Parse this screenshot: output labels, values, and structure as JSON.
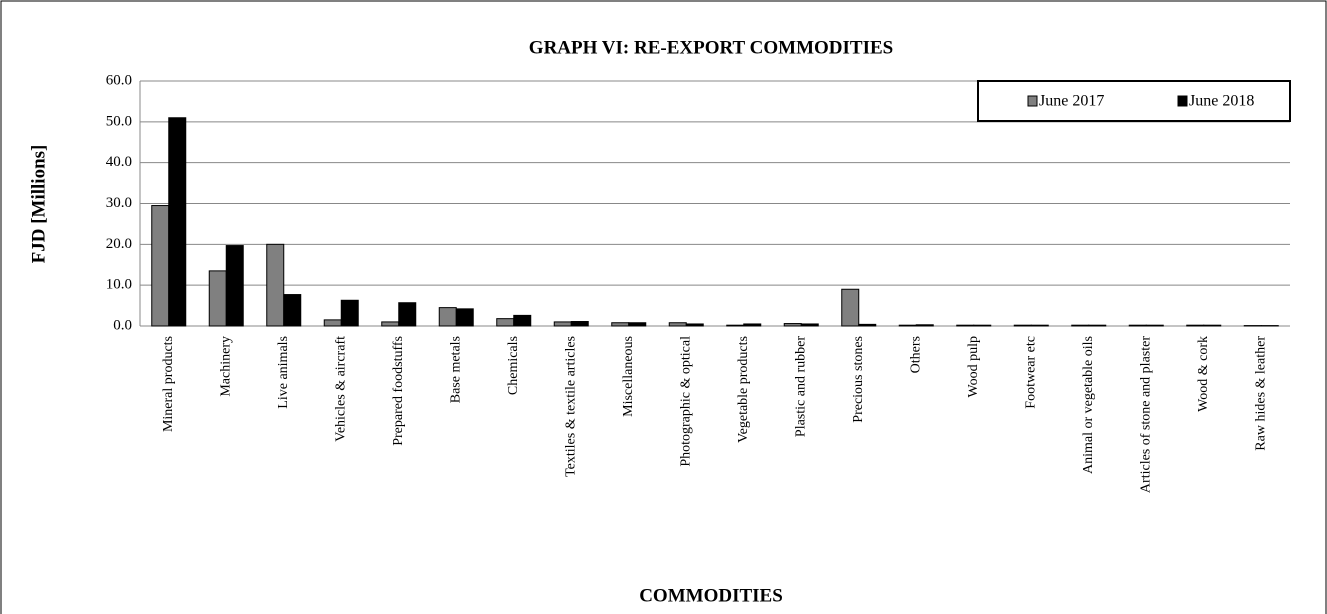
{
  "chart_data": {
    "type": "bar",
    "title": "GRAPH VI: RE-EXPORT COMMODITIES",
    "x_label": "COMMODITIES",
    "y_label": "FJD [Millions]",
    "categories": [
      "Mineral products",
      "Machinery",
      "Live animals",
      "Vehicles & aircraft",
      "Prepared foodstuffs",
      "Base metals",
      "Chemicals",
      "Textiles & textile articles",
      "Miscellaneous",
      "Photographic & optical",
      "Vegetable products",
      "Plastic and rubber",
      "Precious stones",
      "Others",
      "Wood pulp",
      "Footwear etc",
      "Animal or vegetable oils",
      "Articles of stone and plaster",
      "Wood & cork",
      "Raw hides & leather"
    ],
    "series": [
      {
        "name": "June 2017",
        "color": "#808080",
        "values": [
          29.5,
          13.5,
          20.0,
          1.5,
          1.0,
          4.5,
          1.8,
          1.0,
          0.8,
          0.8,
          0.2,
          0.6,
          9.0,
          0.2,
          0.2,
          0.2,
          0.2,
          0.2,
          0.2,
          0.1
        ]
      },
      {
        "name": "June 2018",
        "color": "#000000",
        "values": [
          51.0,
          19.7,
          7.7,
          6.3,
          5.7,
          4.2,
          2.6,
          1.1,
          0.8,
          0.5,
          0.5,
          0.5,
          0.4,
          0.3,
          0.2,
          0.2,
          0.2,
          0.2,
          0.2,
          0.1
        ]
      }
    ],
    "ylim": [
      0,
      60
    ],
    "yticks": [
      {
        "value": 0,
        "label": "0.0"
      },
      {
        "value": 10,
        "label": "10.0"
      },
      {
        "value": 20,
        "label": "20.0"
      },
      {
        "value": 30,
        "label": "30.0"
      },
      {
        "value": 40,
        "label": "40.0"
      },
      {
        "value": 50,
        "label": "50.0"
      },
      {
        "value": 60,
        "label": "60.0"
      }
    ],
    "grid": true,
    "legend": "top-right"
  }
}
